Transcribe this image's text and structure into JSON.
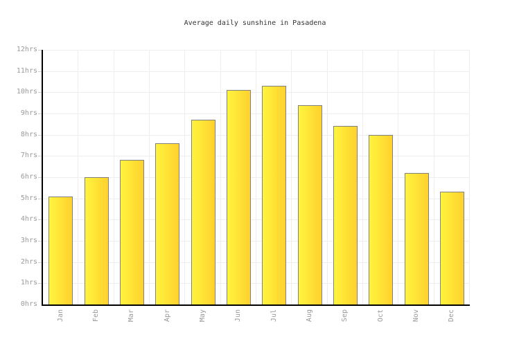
{
  "chart_data": {
    "type": "bar",
    "title": "Average daily sunshine in Pasadena",
    "categories": [
      "Jan",
      "Feb",
      "Mar",
      "Apr",
      "May",
      "Jun",
      "Jul",
      "Aug",
      "Sep",
      "Oct",
      "Nov",
      "Dec"
    ],
    "values": [
      5.1,
      6.0,
      6.8,
      7.6,
      8.7,
      10.1,
      10.3,
      9.4,
      8.4,
      8.0,
      6.2,
      5.3
    ],
    "unit": "hrs",
    "xlabel": "",
    "ylabel": "",
    "ylim": [
      0,
      12
    ],
    "ytick_step": 1,
    "ytick_labels": [
      "0hrs",
      "1hrs",
      "2hrs",
      "3hrs",
      "4hrs",
      "5hrs",
      "6hrs",
      "7hrs",
      "8hrs",
      "9hrs",
      "10hrs",
      "11hrs",
      "12hrs"
    ],
    "grid": true,
    "legend_position": "none"
  },
  "colors": {
    "background": "#FFFFFF",
    "title_text": "#333333",
    "tick_label": "#999999",
    "axis": "#000000",
    "gridline": "#EEEEEE",
    "tick_mark": "#CCCCCC",
    "bar_gradient_left": "#FFF43E",
    "bar_gradient_right": "#FFD12E",
    "bar_border": "#808080"
  }
}
